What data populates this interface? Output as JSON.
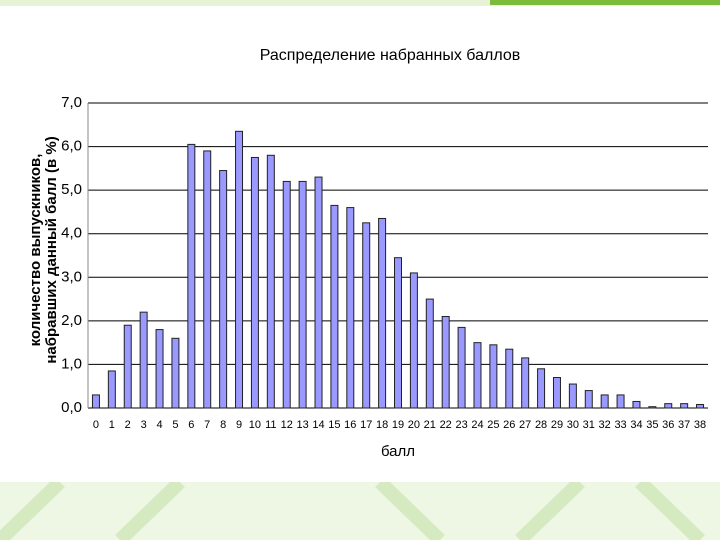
{
  "chart_data": {
    "type": "bar",
    "title": "Распределение набранных баллов",
    "ylabel": [
      "количество выпускников,",
      "набравших данный балл (в %)"
    ],
    "xlabel": "балл",
    "categories": [
      "0",
      "1",
      "2",
      "3",
      "4",
      "5",
      "6",
      "7",
      "8",
      "9",
      "10",
      "11",
      "12",
      "13",
      "14",
      "15",
      "16",
      "17",
      "18",
      "19",
      "20",
      "21",
      "22",
      "23",
      "24",
      "25",
      "26",
      "27",
      "28",
      "29",
      "30",
      "31",
      "32",
      "33",
      "34",
      "35",
      "36",
      "37",
      "38"
    ],
    "values": [
      0.3,
      0.85,
      1.9,
      2.2,
      1.8,
      1.6,
      6.05,
      5.9,
      5.45,
      6.35,
      5.75,
      5.8,
      5.2,
      5.2,
      5.3,
      4.65,
      4.6,
      4.25,
      4.35,
      3.45,
      3.1,
      2.5,
      2.1,
      1.85,
      1.5,
      1.45,
      1.35,
      1.15,
      0.9,
      0.7,
      0.55,
      0.4,
      0.3,
      0.3,
      0.15,
      0.03,
      0.1,
      0.1,
      0.08
    ],
    "color": "#9999ff",
    "ylim": [
      0,
      7
    ],
    "yticks": [
      {
        "value": 0,
        "label": "0,0"
      },
      {
        "value": 1,
        "label": "1,0"
      },
      {
        "value": 2,
        "label": "2,0"
      },
      {
        "value": 3,
        "label": "3,0"
      },
      {
        "value": 4,
        "label": "4,0"
      },
      {
        "value": 5,
        "label": "5,0"
      },
      {
        "value": 6,
        "label": "6,0"
      },
      {
        "value": 7,
        "label": "7,0"
      }
    ],
    "grid": true
  }
}
